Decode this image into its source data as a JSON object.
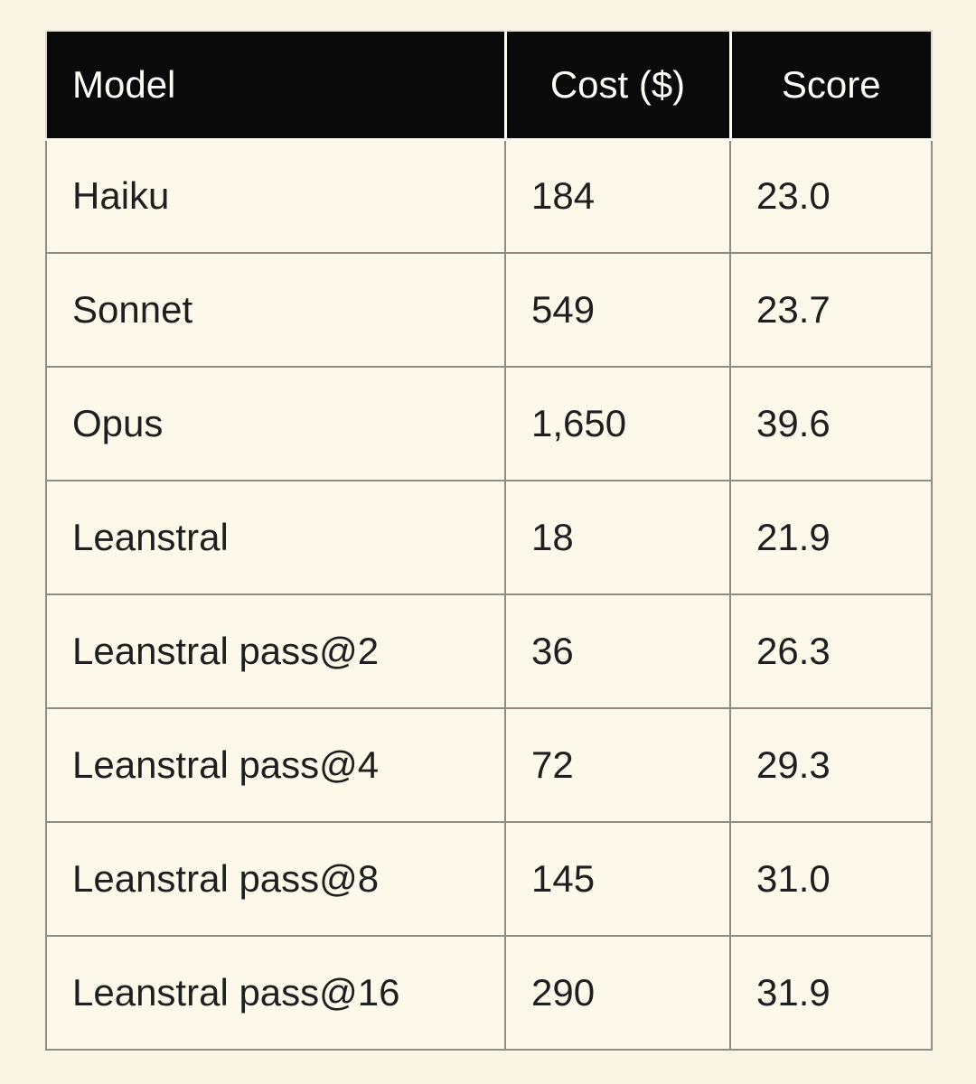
{
  "table": {
    "header": {
      "model": "Model",
      "cost": "Cost ($)",
      "score": "Score"
    },
    "rows": [
      {
        "model": "Haiku",
        "cost": "184",
        "score": "23.0"
      },
      {
        "model": "Sonnet",
        "cost": "549",
        "score": "23.7"
      },
      {
        "model": "Opus",
        "cost": "1,650",
        "score": "39.6"
      },
      {
        "model": "Leanstral",
        "cost": "18",
        "score": "21.9"
      },
      {
        "model": "Leanstral pass@2",
        "cost": "36",
        "score": "26.3"
      },
      {
        "model": "Leanstral pass@4",
        "cost": "72",
        "score": "29.3"
      },
      {
        "model": "Leanstral pass@8",
        "cost": "145",
        "score": "31.0"
      },
      {
        "model": "Leanstral pass@16",
        "cost": "290",
        "score": "31.9"
      }
    ],
    "colors": {
      "page_background": "#f9f4e4",
      "cell_background": "#fcf8ea",
      "header_background": "#0a0a0a",
      "header_text": "#fdfdf8",
      "header_divider": "#fdfcf2",
      "grid_border": "#8d8d84",
      "body_text": "#1f1f1f"
    }
  },
  "chart_data": {
    "type": "table",
    "columns": [
      "Model",
      "Cost ($)",
      "Score"
    ],
    "rows": [
      [
        "Haiku",
        184,
        23.0
      ],
      [
        "Sonnet",
        549,
        23.7
      ],
      [
        "Opus",
        1650,
        39.6
      ],
      [
        "Leanstral",
        18,
        21.9
      ],
      [
        "Leanstral pass@2",
        36,
        26.3
      ],
      [
        "Leanstral pass@4",
        72,
        29.3
      ],
      [
        "Leanstral pass@8",
        145,
        31.0
      ],
      [
        "Leanstral pass@16",
        290,
        31.9
      ]
    ],
    "notes": "Black header row; cream body cells with gray grid borders; Model column left-aligned, header Cost/Score centered, body values left-aligned."
  }
}
